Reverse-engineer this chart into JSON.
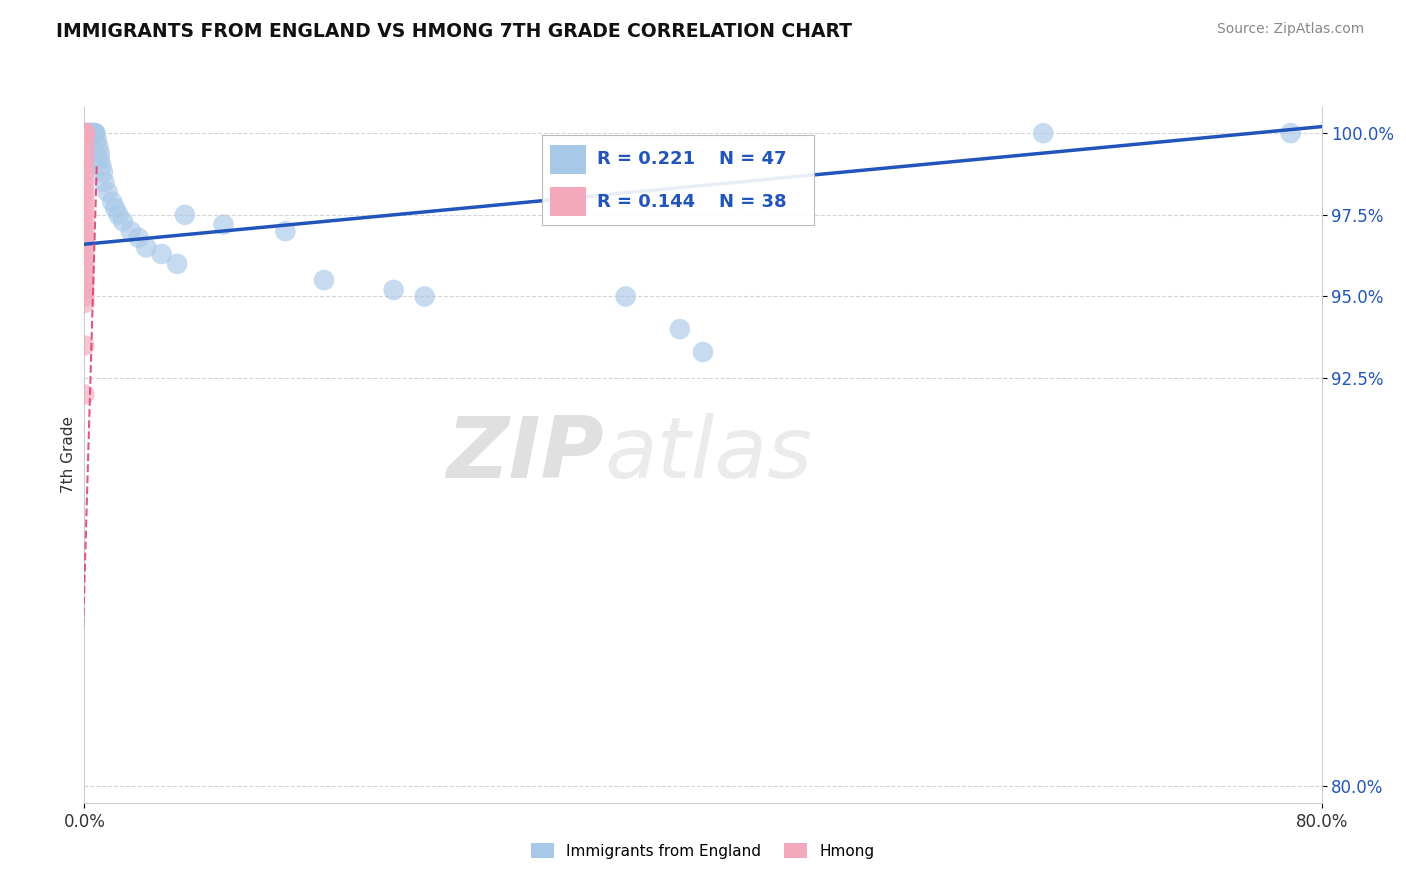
{
  "title": "IMMIGRANTS FROM ENGLAND VS HMONG 7TH GRADE CORRELATION CHART",
  "source_text": "Source: ZipAtlas.com",
  "ylabel": "7th Grade",
  "x_label_min": "0.0%",
  "x_label_max": "80.0%",
  "legend_r1": "R = 0.221",
  "legend_n1": "N = 47",
  "legend_r2": "R = 0.144",
  "legend_n2": "N = 38",
  "legend_label1": "Immigrants from England",
  "legend_label2": "Hmong",
  "blue_color": "#a8c8e8",
  "pink_color": "#f4a8bc",
  "trend_blue": "#2255bb",
  "trend_pink": "#dd4477",
  "watermark_zip": "ZIP",
  "watermark_atlas": "atlas",
  "blue_x": [
    0.001,
    0.001,
    0.001,
    0.002,
    0.002,
    0.002,
    0.003,
    0.003,
    0.003,
    0.004,
    0.004,
    0.004,
    0.005,
    0.005,
    0.005,
    0.006,
    0.006,
    0.007,
    0.007,
    0.008,
    0.009,
    0.01,
    0.01,
    0.011,
    0.012,
    0.013,
    0.015,
    0.018,
    0.02,
    0.022,
    0.025,
    0.03,
    0.035,
    0.04,
    0.05,
    0.06,
    0.065,
    0.09,
    0.13,
    0.155,
    0.2,
    0.22,
    0.35,
    0.385,
    0.4,
    0.62,
    0.78
  ],
  "blue_y": [
    1.0,
    1.0,
    1.0,
    1.0,
    1.0,
    1.0,
    1.0,
    1.0,
    1.0,
    1.0,
    1.0,
    1.0,
    1.0,
    1.0,
    1.0,
    1.0,
    1.0,
    1.0,
    1.0,
    0.998,
    0.996,
    0.994,
    0.992,
    0.99,
    0.988,
    0.985,
    0.982,
    0.979,
    0.977,
    0.975,
    0.973,
    0.97,
    0.968,
    0.965,
    0.963,
    0.96,
    0.975,
    0.972,
    0.97,
    0.955,
    0.952,
    0.95,
    0.95,
    0.94,
    0.933,
    1.0,
    1.0
  ],
  "pink_x": [
    0.0,
    0.0,
    0.0,
    0.0,
    0.0,
    0.0,
    0.0,
    0.0,
    0.0,
    0.0,
    0.0,
    0.0,
    0.0,
    0.0,
    0.0,
    0.0,
    0.0,
    0.0,
    0.0,
    0.0,
    0.0,
    0.0,
    0.0,
    0.0,
    0.0,
    0.0,
    0.0,
    0.0,
    0.0,
    0.0,
    0.0,
    0.0,
    0.0,
    0.0,
    0.0,
    0.0,
    0.0,
    0.0
  ],
  "pink_y": [
    1.0,
    1.0,
    1.0,
    1.0,
    1.0,
    1.0,
    1.0,
    1.0,
    1.0,
    1.0,
    0.998,
    0.996,
    0.994,
    0.992,
    0.99,
    0.988,
    0.986,
    0.984,
    0.982,
    0.98,
    0.978,
    0.976,
    0.974,
    0.972,
    0.97,
    0.968,
    0.966,
    0.964,
    0.962,
    0.96,
    0.958,
    0.956,
    0.954,
    0.952,
    0.95,
    0.948,
    0.935,
    0.92
  ],
  "xlim": [
    0.0,
    0.8
  ],
  "ylim": [
    0.795,
    1.008
  ],
  "yticks": [
    0.8,
    0.925,
    0.95,
    0.975,
    1.0
  ],
  "ytick_labels": [
    "80.0%",
    "92.5%",
    "95.0%",
    "97.5%",
    "100.0%"
  ],
  "blue_trend_x0": 0.0,
  "blue_trend_y0": 0.966,
  "blue_trend_x1": 0.8,
  "blue_trend_y1": 1.002,
  "pink_trend_x0": -0.002,
  "pink_trend_y0": 0.87,
  "pink_trend_x1": 0.005,
  "pink_trend_y1": 0.99,
  "background_color": "#ffffff",
  "grid_color": "#cccccc"
}
